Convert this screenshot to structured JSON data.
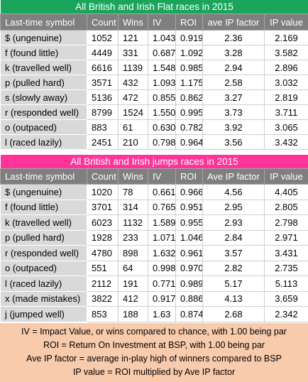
{
  "tables": [
    {
      "title": "All British and Irish Flat races in 2015",
      "header": [
        "Last-time symbol",
        "Count",
        "Wins",
        "IV",
        "ROI",
        "ave IP factor",
        "IP value"
      ],
      "rows": [
        [
          "$ (ungenuine)",
          "1052",
          "121",
          "1.043",
          "0.919",
          "2.36",
          "2.169"
        ],
        [
          "f (found little)",
          "4449",
          "331",
          "0.687",
          "1.092",
          "3.28",
          "3.582"
        ],
        [
          "k (travelled well)",
          "6616",
          "1139",
          "1.548",
          "0.985",
          "2.94",
          "2.896"
        ],
        [
          "p (pulled hard)",
          "3571",
          "432",
          "1.093",
          "1.175",
          "2.58",
          "3.032"
        ],
        [
          "s (slowly away)",
          "5136",
          "472",
          "0.855",
          "0.862",
          "3.27",
          "2.819"
        ],
        [
          "r (responded well)",
          "8799",
          "1524",
          "1.550",
          "0.995",
          "3.73",
          "3.711"
        ],
        [
          "o (outpaced)",
          "883",
          "61",
          "0.630",
          "0.782",
          "3.92",
          "3.065"
        ],
        [
          "l (raced lazily)",
          "2451",
          "210",
          "0.798",
          "0.964",
          "3.56",
          "3.432"
        ]
      ]
    },
    {
      "title": "All British and Irish jumps races in 2015",
      "header": [
        "Last-time symbol",
        "Count",
        "Wins",
        "IV",
        "ROI",
        "Ave IP factor",
        "IP value"
      ],
      "rows": [
        [
          "$ (ungenuine)",
          "1020",
          "78",
          "0.661",
          "0.966",
          "4.56",
          "4.405"
        ],
        [
          "f (found little)",
          "3701",
          "314",
          "0.765",
          "0.951",
          "2.95",
          "2.805"
        ],
        [
          "k (travelled well)",
          "6023",
          "1132",
          "1.589",
          "0.955",
          "2.93",
          "2.798"
        ],
        [
          "p (pulled hard)",
          "1928",
          "233",
          "1.071",
          "1.046",
          "2.84",
          "2.971"
        ],
        [
          "r (responded well)",
          "4780",
          "898",
          "1.632",
          "0.961",
          "3.57",
          "3.431"
        ],
        [
          "o (outpaced)",
          "551",
          "64",
          "0.998",
          "0.970",
          "2.82",
          "2.735"
        ],
        [
          "l (raced lazily)",
          "2112",
          "191",
          "0.771",
          "0.989",
          "5.17",
          "5.113"
        ],
        [
          "x (made mistakes)",
          "3822",
          "412",
          "0.917",
          "0.886",
          "4.13",
          "3.659"
        ],
        [
          "j (jumped well)",
          "853",
          "188",
          "1.63",
          "0.874",
          "2.68",
          "2.342"
        ]
      ]
    }
  ],
  "notes": [
    "IV = Impact Value, or wins compared to chance, with 1.00 being par",
    "ROI = Return On Investment at BSP, with 1.00 being par",
    "Ave IP factor = average in-play high of winners compared to BSP",
    "IP value = ROI multiplied by Ave IP factor"
  ]
}
